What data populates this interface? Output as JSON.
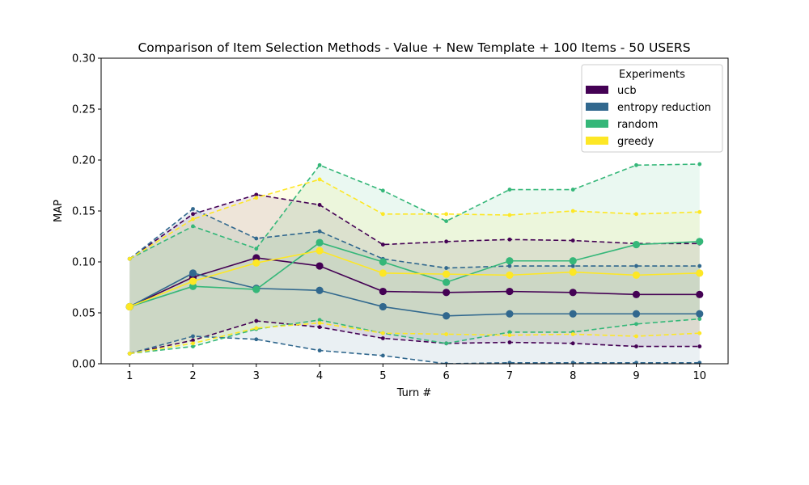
{
  "chart_data": {
    "type": "line",
    "title": "Comparison of Item Selection Methods - Value + New Template + 100 Items - 50 USERS",
    "xlabel": "Turn #",
    "ylabel": "MAP",
    "x": [
      1,
      2,
      3,
      4,
      5,
      6,
      7,
      8,
      9,
      10
    ],
    "xlim": [
      0.55,
      10.45
    ],
    "ylim": [
      0.0,
      0.3
    ],
    "yticks": [
      "0.00",
      "0.05",
      "0.10",
      "0.15",
      "0.20",
      "0.25",
      "0.30"
    ],
    "ytick_values": [
      0.0,
      0.05,
      0.1,
      0.15,
      0.2,
      0.25,
      0.3
    ],
    "grid": false,
    "legend": {
      "title": "Experiments",
      "placement": "top-right"
    },
    "series": [
      {
        "name": "ucb",
        "color": "#440154",
        "mean": [
          0.056,
          0.085,
          0.104,
          0.096,
          0.071,
          0.07,
          0.071,
          0.07,
          0.068,
          0.068
        ],
        "upper": [
          0.103,
          0.147,
          0.166,
          0.156,
          0.117,
          0.12,
          0.122,
          0.121,
          0.118,
          0.118
        ],
        "lower": [
          0.01,
          0.023,
          0.042,
          0.036,
          0.025,
          0.02,
          0.021,
          0.02,
          0.017,
          0.017
        ]
      },
      {
        "name": "entropy reduction",
        "color": "#31688e",
        "mean": [
          0.056,
          0.089,
          0.074,
          0.072,
          0.056,
          0.047,
          0.049,
          0.049,
          0.049,
          0.049
        ],
        "upper": [
          0.103,
          0.152,
          0.123,
          0.13,
          0.103,
          0.094,
          0.096,
          0.096,
          0.096,
          0.096
        ],
        "lower": [
          0.01,
          0.027,
          0.024,
          0.013,
          0.008,
          0.0,
          0.001,
          0.001,
          0.001,
          0.001
        ]
      },
      {
        "name": "random",
        "color": "#35b779",
        "mean": [
          0.056,
          0.076,
          0.073,
          0.119,
          0.1,
          0.08,
          0.101,
          0.101,
          0.117,
          0.12
        ],
        "upper": [
          0.103,
          0.135,
          0.113,
          0.195,
          0.17,
          0.14,
          0.171,
          0.171,
          0.195,
          0.196
        ],
        "lower": [
          0.01,
          0.017,
          0.034,
          0.043,
          0.03,
          0.02,
          0.031,
          0.031,
          0.039,
          0.044
        ]
      },
      {
        "name": "greedy",
        "color": "#fde725",
        "mean": [
          0.056,
          0.081,
          0.099,
          0.111,
          0.089,
          0.088,
          0.087,
          0.09,
          0.087,
          0.089
        ],
        "upper": [
          0.103,
          0.142,
          0.163,
          0.181,
          0.147,
          0.147,
          0.146,
          0.15,
          0.147,
          0.149
        ],
        "lower": [
          0.01,
          0.02,
          0.035,
          0.04,
          0.03,
          0.029,
          0.028,
          0.029,
          0.027,
          0.03
        ]
      }
    ]
  }
}
